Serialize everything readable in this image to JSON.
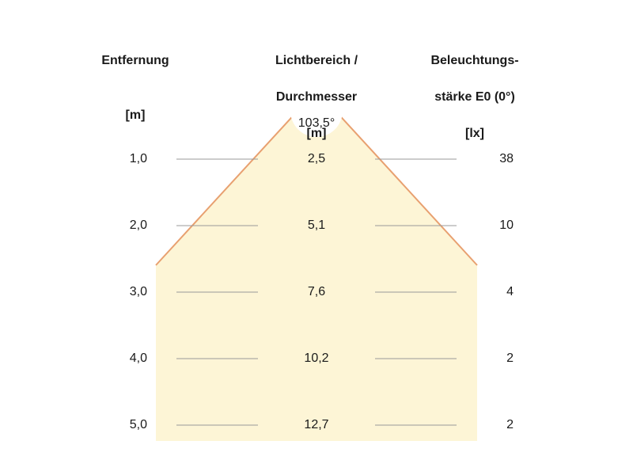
{
  "headers": {
    "distance": {
      "line1": "Entfernung",
      "unit": "[m]"
    },
    "light_area": {
      "line1": "Lichtbereich /",
      "line2": "Durchmesser",
      "unit": "[m]"
    },
    "illuminance": {
      "line1": "Beleuchtungs-",
      "line2": "stärke E0 (0°)",
      "unit": "[lx]"
    }
  },
  "beam_angle": "103,5°",
  "colors": {
    "beam_fill": "#fdf5d6",
    "beam_edge": "#e8a070",
    "row_line": "#999999"
  },
  "rows": [
    {
      "distance": "1,0",
      "diameter": "2,5",
      "illuminance": "38"
    },
    {
      "distance": "2,0",
      "diameter": "5,1",
      "illuminance": "10"
    },
    {
      "distance": "3,0",
      "diameter": "7,6",
      "illuminance": "4"
    },
    {
      "distance": "4,0",
      "diameter": "10,2",
      "illuminance": "2"
    },
    {
      "distance": "5,0",
      "diameter": "12,7",
      "illuminance": "2"
    }
  ]
}
